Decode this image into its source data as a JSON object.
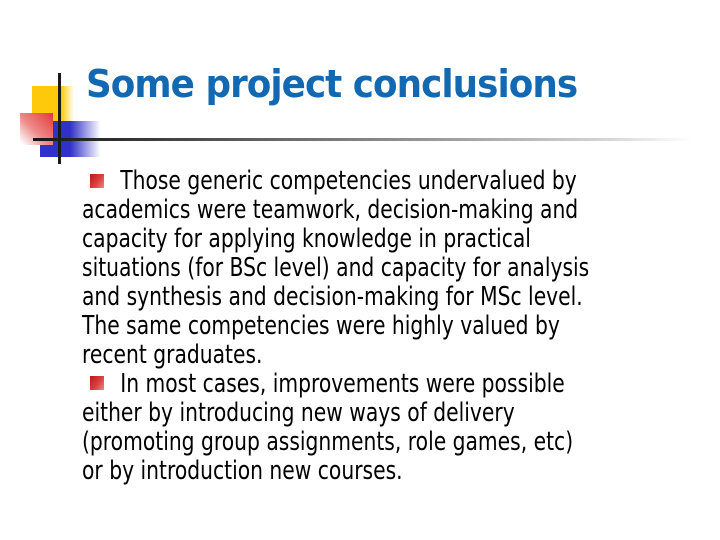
{
  "colors": {
    "background": "#FFFFFF",
    "title-blue": "#1269B2",
    "text-black": "#000000",
    "deco-yellow": "#FFC90B",
    "deco-blue": "#3131C9",
    "deco-red": "#E23A3A",
    "bullet-red-dark": "#C01717",
    "bullet-red-light": "#EE8888",
    "line-dark": "#1A1A1A"
  },
  "slide": {
    "title": "Some project conclusions",
    "bullets": [
      {
        "icon": "red-gradient-square-bullet",
        "lines": [
          "Those generic competencies undervalued by",
          "academics were teamwork, decision-making and",
          "capacity for applying knowledge in practical",
          "situations (for BSc level) and capacity for analysis",
          "and synthesis and decision-making for MSc level.",
          "The same competencies were highly valued by",
          "recent graduates."
        ]
      },
      {
        "icon": "red-gradient-square-bullet",
        "lines": [
          "In most cases, improvements were possible",
          "either by introducing new ways of delivery",
          "(promoting group assignments, role games, etc)",
          "or by introduction new courses."
        ]
      }
    ]
  }
}
